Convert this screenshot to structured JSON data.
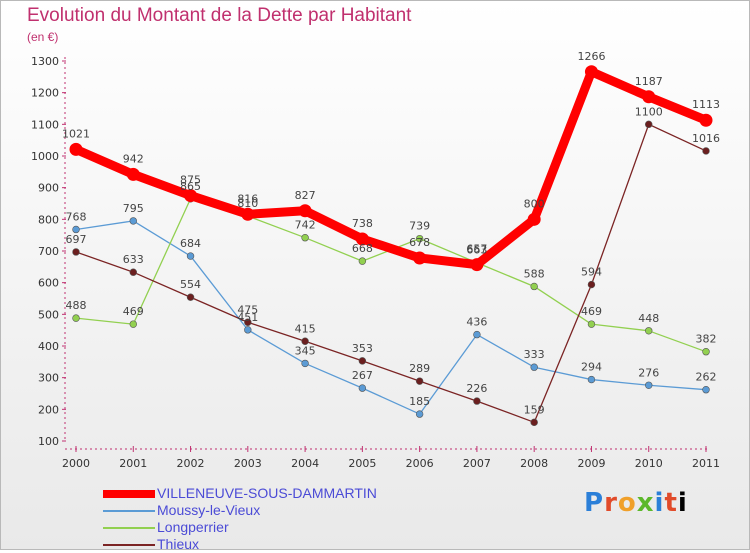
{
  "title": "Evolution du Montant de la Dette par Habitant",
  "subtitle": "(en €)",
  "logo": "Proxiti",
  "chart_data": {
    "type": "line",
    "x": [
      "2000",
      "2001",
      "2002",
      "2003",
      "2004",
      "2005",
      "2006",
      "2007",
      "2008",
      "2009",
      "2010",
      "2011"
    ],
    "ylim": [
      100,
      1300
    ],
    "yticks": [
      100,
      200,
      300,
      400,
      500,
      600,
      700,
      800,
      900,
      1000,
      1100,
      1200,
      1300
    ],
    "grid": false,
    "legend_position": "bottom-left",
    "series": [
      {
        "name": "VILLENEUVE-SOUS-DAMMARTIN",
        "color": "#ff0000",
        "values": [
          1021,
          942,
          875,
          816,
          827,
          738,
          678,
          657,
          800,
          1266,
          1187,
          1113
        ]
      },
      {
        "name": "Moussy-le-Vieux",
        "color": "#5b9bd5",
        "values": [
          768,
          795,
          684,
          451,
          345,
          267,
          185,
          436,
          333,
          294,
          276,
          262
        ]
      },
      {
        "name": "Longperrier",
        "color": "#92d050",
        "values": [
          488,
          469,
          865,
          810,
          742,
          668,
          739,
          663,
          588,
          469,
          448,
          382
        ]
      },
      {
        "name": "Thieux",
        "color": "#7b2424",
        "values": [
          697,
          633,
          554,
          475,
          415,
          353,
          289,
          226,
          159,
          594,
          1100,
          1016
        ]
      }
    ]
  }
}
